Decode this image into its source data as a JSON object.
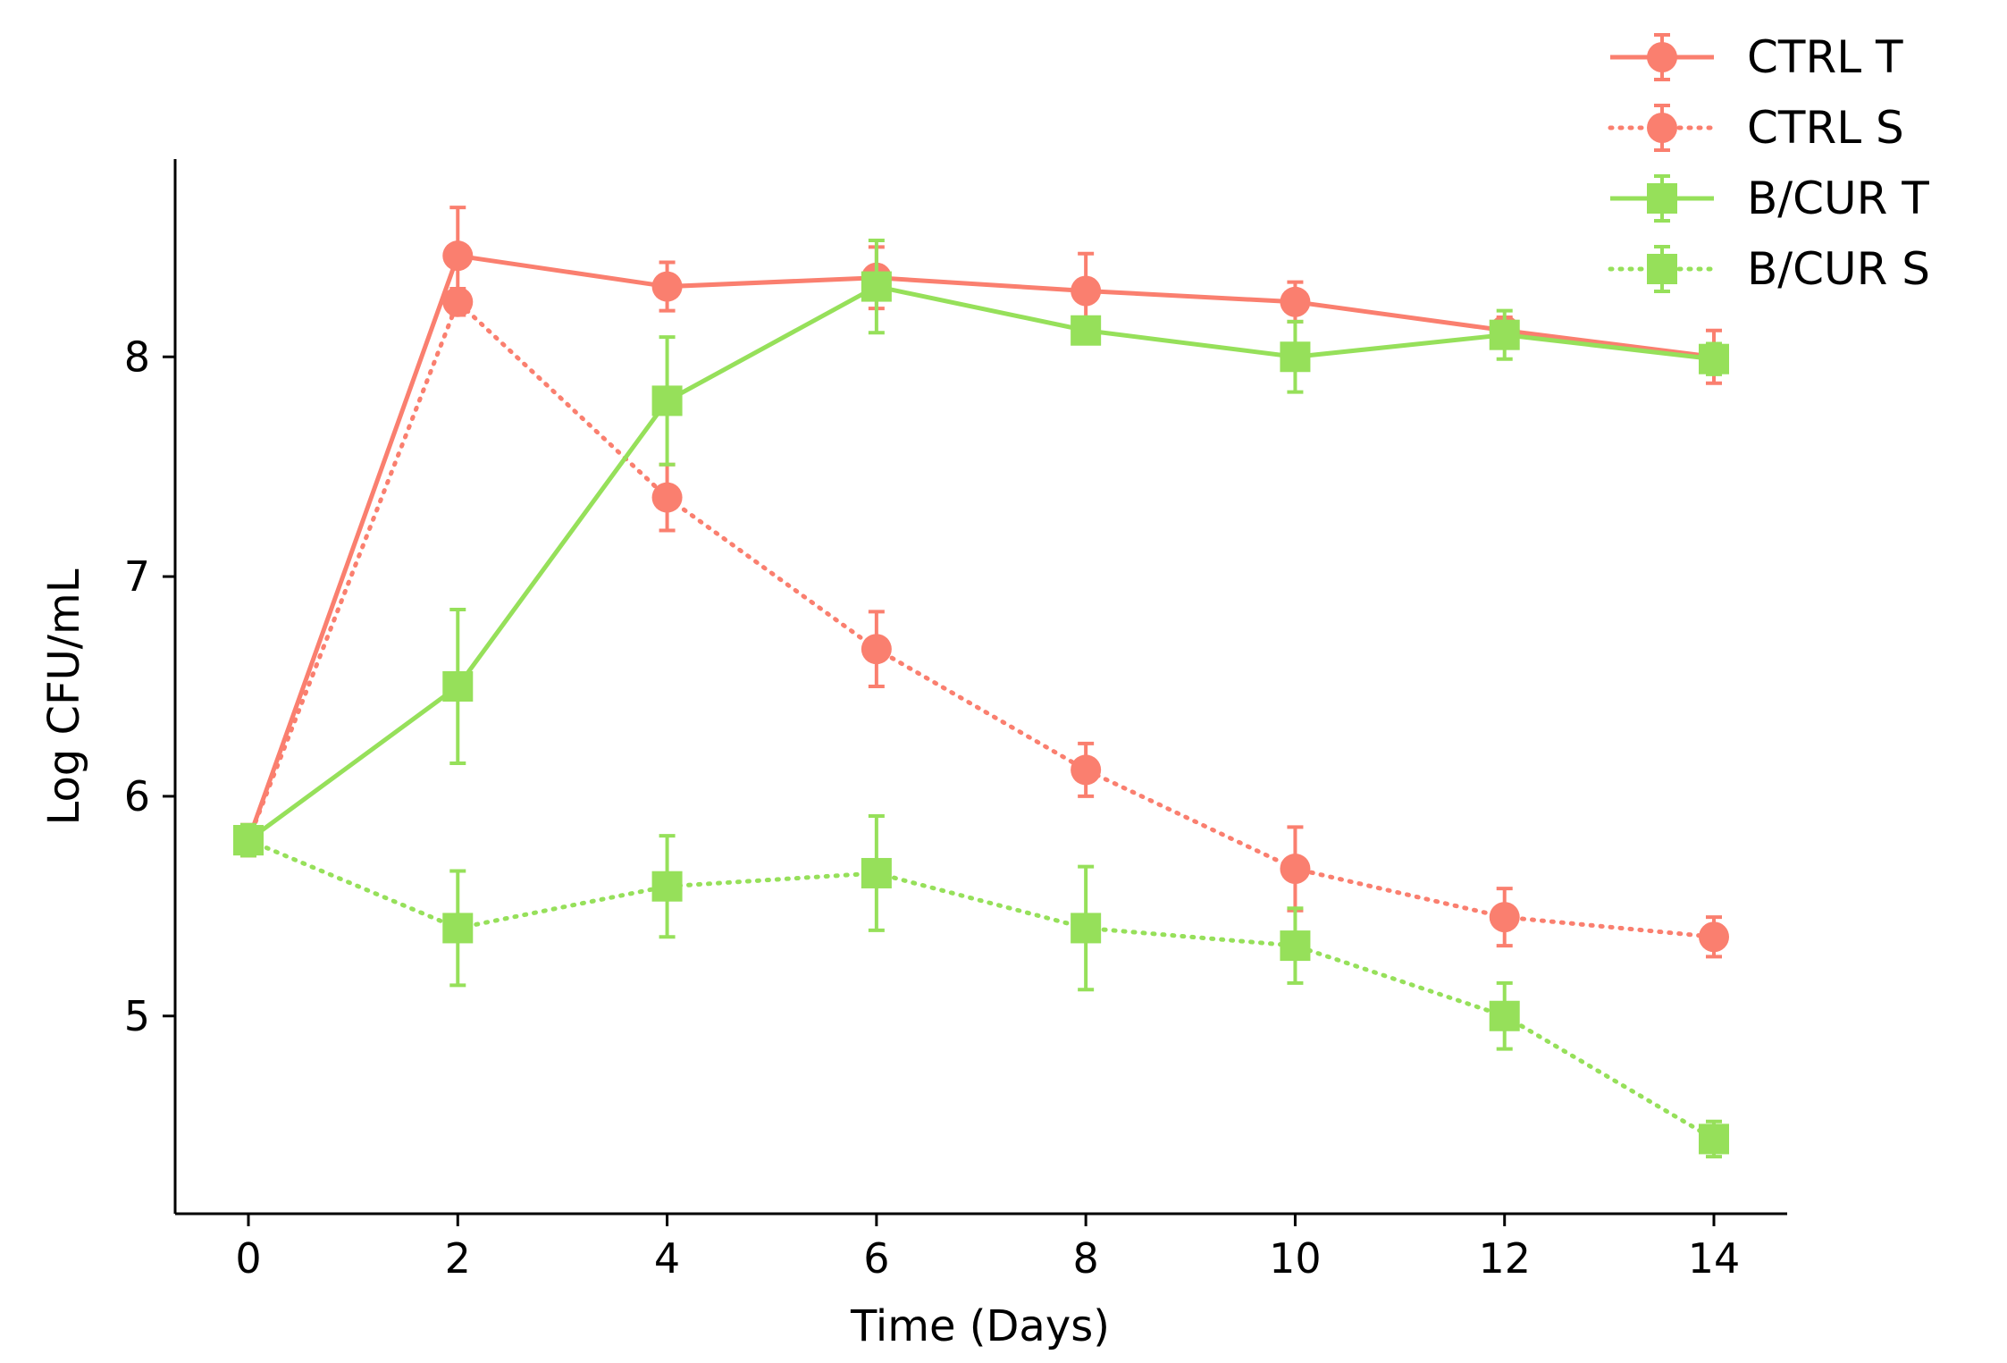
{
  "chart_data": {
    "type": "line",
    "title": "",
    "xlabel": "Time (Days)",
    "ylabel": "Log CFU/mL",
    "x": [
      0,
      2,
      4,
      6,
      8,
      10,
      12,
      14
    ],
    "xlim": [
      -0.7,
      14.7
    ],
    "ylim": [
      4.1,
      8.9
    ],
    "xticks": [
      0,
      2,
      4,
      6,
      8,
      10,
      12,
      14
    ],
    "yticks": [
      5,
      6,
      7,
      8
    ],
    "xtick_labels": [
      "0",
      "2",
      "4",
      "6",
      "8",
      "10",
      "12",
      "14"
    ],
    "ytick_labels": [
      "5",
      "6",
      "7",
      "8"
    ],
    "grid": false,
    "legend_position": "top-right",
    "series": [
      {
        "name": "CTRL T",
        "color": "#fa7f6f",
        "line_style": "solid",
        "marker": "circle",
        "values": [
          5.8,
          8.46,
          8.32,
          8.36,
          8.3,
          8.25,
          8.12,
          8.0
        ],
        "errors": [
          0.07,
          0.22,
          0.11,
          0.14,
          0.17,
          0.09,
          0.06,
          0.12
        ]
      },
      {
        "name": "CTRL S",
        "color": "#fa7f6f",
        "line_style": "dotted",
        "marker": "circle",
        "values": [
          5.8,
          8.25,
          7.36,
          6.67,
          6.12,
          5.67,
          5.45,
          5.36
        ],
        "errors": [
          0.07,
          0.06,
          0.15,
          0.17,
          0.12,
          0.19,
          0.13,
          0.09
        ]
      },
      {
        "name": "B/CUR T",
        "color": "#96e05a",
        "line_style": "solid",
        "marker": "square",
        "values": [
          5.8,
          6.5,
          7.8,
          8.32,
          8.12,
          8.0,
          8.1,
          7.99
        ],
        "errors": [
          0.07,
          0.35,
          0.29,
          0.21,
          0.06,
          0.16,
          0.11,
          0.07
        ]
      },
      {
        "name": "B/CUR S",
        "color": "#96e05a",
        "line_style": "dotted",
        "marker": "square",
        "values": [
          5.8,
          5.4,
          5.59,
          5.65,
          5.4,
          5.32,
          5.0,
          4.44
        ],
        "errors": [
          0.07,
          0.26,
          0.23,
          0.26,
          0.28,
          0.17,
          0.15,
          0.08
        ]
      }
    ]
  }
}
